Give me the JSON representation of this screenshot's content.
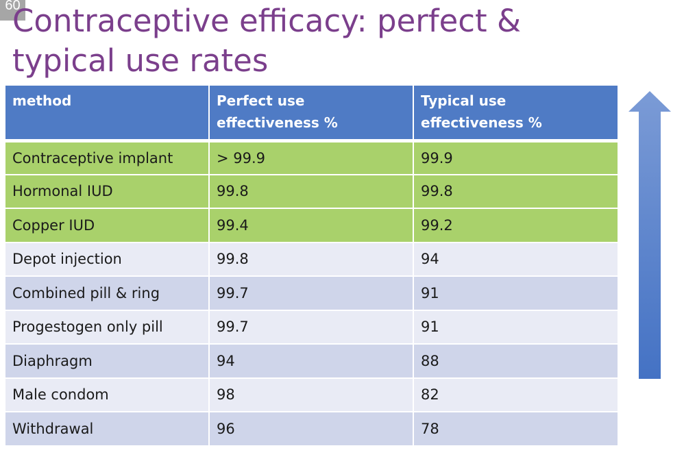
{
  "slide_number": "60",
  "title": "Contraceptive efficacy: perfect & typical use rates",
  "table": {
    "headers": [
      "method",
      "Perfect use effectiveness %",
      "Typical use effectiveness %"
    ],
    "rows": [
      {
        "method": "Contraceptive implant",
        "perfect": "> 99.9",
        "typical": "99.9",
        "highlight": "green"
      },
      {
        "method": "Hormonal IUD",
        "perfect": "99.8",
        "typical": "99.8",
        "highlight": "green"
      },
      {
        "method": "Copper IUD",
        "perfect": "99.4",
        "typical": "99.2",
        "highlight": "green"
      },
      {
        "method": "Depot injection",
        "perfect": "99.8",
        "typical": "94",
        "highlight": "light"
      },
      {
        "method": "Combined pill & ring",
        "perfect": "99.7",
        "typical": "91",
        "highlight": "dark"
      },
      {
        "method": "Progestogen only pill",
        "perfect": "99.7",
        "typical": "91",
        "highlight": "light"
      },
      {
        "method": "Diaphragm",
        "perfect": "94",
        "typical": "88",
        "highlight": "dark"
      },
      {
        "method": "Male condom",
        "perfect": "98",
        "typical": "82",
        "highlight": "light"
      },
      {
        "method": "Withdrawal",
        "perfect": "96",
        "typical": "78",
        "highlight": "dark"
      }
    ]
  },
  "colors": {
    "title": "#7b3f8c",
    "header_bg": "#4f7bc5",
    "green_row": "#a9d16b",
    "light_row": "#e9ebf5",
    "dark_row": "#cfd5ea",
    "arrow_top": "#7b9bd6",
    "arrow_bottom": "#4472c4"
  },
  "arrow": {
    "direction": "up",
    "icon": "up-arrow-icon"
  }
}
